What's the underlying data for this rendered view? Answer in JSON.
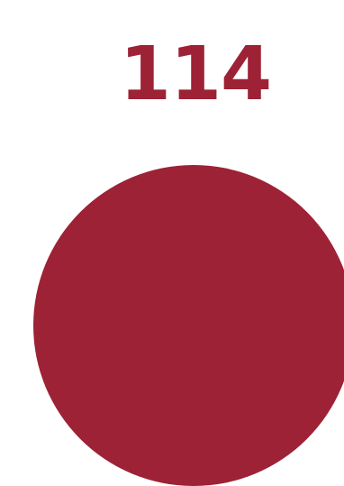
{
  "value": "114",
  "colors": {
    "accent": "#9d2236",
    "background": "#ffffff"
  }
}
